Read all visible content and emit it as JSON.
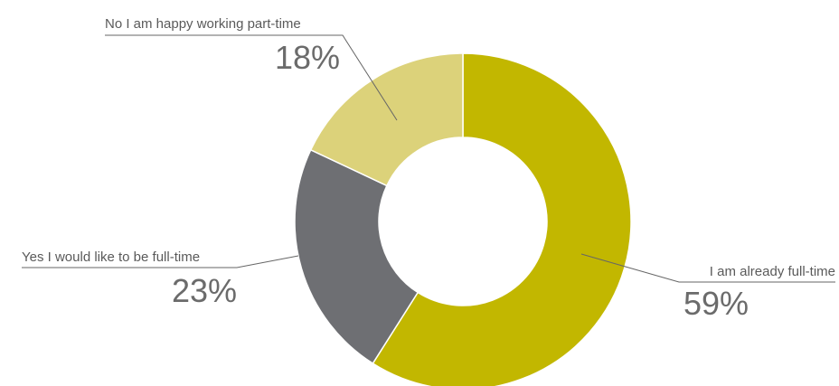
{
  "chart_data": {
    "type": "pie",
    "donut": true,
    "categories": [
      "I am already full-time",
      "Yes I would like to be full-time",
      "No I am happy working part-time"
    ],
    "values": [
      59,
      23,
      18
    ],
    "value_labels": [
      "59%",
      "23%",
      "18%"
    ],
    "colors": [
      "#c2b700",
      "#6e6f73",
      "#dcd27a"
    ],
    "legend": "none",
    "data_labels": "outside with leader lines"
  }
}
